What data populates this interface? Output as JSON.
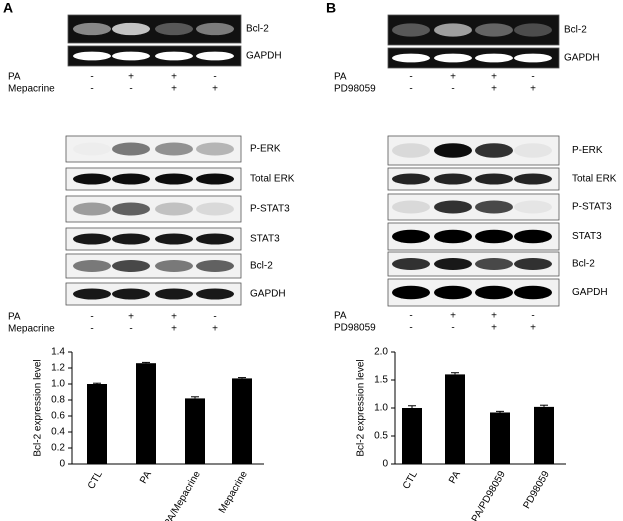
{
  "panels": [
    {
      "label": "A",
      "rt_pcr": {
        "bands": [
          "Bcl-2",
          "GAPDH"
        ]
      },
      "rt_treatments": [
        {
          "name": "PA",
          "signs": [
            "-",
            "+",
            "+",
            "-"
          ]
        },
        {
          "name": "Mepacrine",
          "signs": [
            "-",
            "-",
            "+",
            "+"
          ]
        }
      ],
      "western": {
        "bands": [
          "P-ERK",
          "Total ERK",
          "P-STAT3",
          "STAT3",
          "Bcl-2",
          "GAPDH"
        ]
      },
      "wb_treatments": [
        {
          "name": "PA",
          "signs": [
            "-",
            "+",
            "+",
            "-"
          ]
        },
        {
          "name": "Mepacrine",
          "signs": [
            "-",
            "-",
            "+",
            "+"
          ]
        }
      ]
    },
    {
      "label": "B",
      "rt_pcr": {
        "bands": [
          "Bcl-2",
          "GAPDH"
        ]
      },
      "rt_treatments": [
        {
          "name": "PA",
          "signs": [
            "-",
            "+",
            "+",
            "-"
          ]
        },
        {
          "name": "PD98059",
          "signs": [
            "-",
            "-",
            "+",
            "+"
          ]
        }
      ],
      "western": {
        "bands": [
          "P-ERK",
          "Total ERK",
          "P-STAT3",
          "STAT3",
          "Bcl-2",
          "GAPDH"
        ]
      },
      "wb_treatments": [
        {
          "name": "PA",
          "signs": [
            "-",
            "+",
            "+",
            "-"
          ]
        },
        {
          "name": "PD98059",
          "signs": [
            "-",
            "-",
            "+",
            "+"
          ]
        }
      ]
    }
  ],
  "chart_data": [
    {
      "type": "bar",
      "y_label": "Bcl-2 expression level",
      "categories": [
        "CTL",
        "PA",
        "PA/Mepacrine",
        "Mepacrine"
      ],
      "values": [
        1.0,
        1.26,
        0.82,
        1.07
      ],
      "errors": [
        0.01,
        0.01,
        0.02,
        0.01
      ],
      "color": "#000000",
      "ylim": [
        0,
        1.4
      ],
      "yticks": [
        0,
        0.2,
        0.4,
        0.6,
        0.8,
        {
          "value": 1,
          "label": "1.0"
        },
        1.2,
        1.4
      ]
    },
    {
      "type": "bar",
      "y_label": "Bcl-2 expression level",
      "categories": [
        "CTL",
        "PA",
        "PA/PD98059",
        "PD98059"
      ],
      "values": [
        1.0,
        1.6,
        0.92,
        1.02
      ],
      "errors": [
        0.04,
        0.03,
        0.02,
        0.03
      ],
      "color": "#000000",
      "ylim": [
        0,
        2.0
      ],
      "yticks": [
        0,
        0.5,
        {
          "value": 1,
          "label": "1.0"
        },
        1.5,
        {
          "value": 2,
          "label": "2.0"
        }
      ]
    }
  ]
}
